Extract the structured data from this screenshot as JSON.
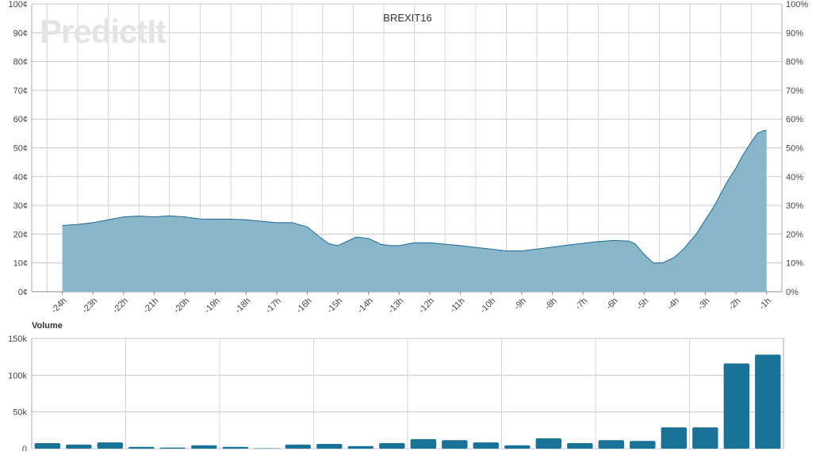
{
  "logo": {
    "text": "PredictIt"
  },
  "chart_data": [
    {
      "type": "area",
      "title": "BREXIT16",
      "xlabel": "",
      "ylabel": "",
      "categories": [
        "-24h",
        "-23h",
        "-22h",
        "-21h",
        "-20h",
        "-19h",
        "-18h",
        "-17h",
        "-16h",
        "-15h",
        "-14h",
        "-13h",
        "-12h",
        "-11h",
        "-10h",
        "-9h",
        "-8h",
        "-7h",
        "-6h",
        "-5h",
        "-4h",
        "-3h",
        "-2h",
        "-1h"
      ],
      "x": [
        -24,
        -23.5,
        -23,
        -22.5,
        -22,
        -21.5,
        -21,
        -20.5,
        -20,
        -19.5,
        -19,
        -18.5,
        -18,
        -17.5,
        -17,
        -16.5,
        -16,
        -15.6,
        -15.3,
        -15,
        -14.7,
        -14.4,
        -14,
        -13.6,
        -13.3,
        -13,
        -12.5,
        -12,
        -11.5,
        -11,
        -10.5,
        -10,
        -9.5,
        -9,
        -8.5,
        -8,
        -7.5,
        -7,
        -6.5,
        -6,
        -5.5,
        -5.3,
        -5,
        -4.7,
        -4.4,
        -4,
        -3.7,
        -3.3,
        -3,
        -2.7,
        -2.5,
        -2.3,
        -2,
        -1.8,
        -1.5,
        -1.3,
        -1.1,
        -1
      ],
      "values": [
        23,
        23.4,
        24,
        25,
        26,
        26.3,
        26,
        26.4,
        26,
        25.3,
        25.2,
        25.2,
        25,
        24.5,
        24,
        24,
        22.5,
        19,
        16.7,
        16,
        17.5,
        19,
        18.5,
        16.5,
        16,
        16,
        17,
        17,
        16.5,
        16,
        15.4,
        14.8,
        14.2,
        14.2,
        14.8,
        15.5,
        16.2,
        16.8,
        17.4,
        17.8,
        17.6,
        16.7,
        13,
        10,
        10,
        12,
        15,
        20,
        25,
        30,
        34,
        38,
        43,
        47,
        52,
        55,
        56,
        56
      ],
      "y_tick_values": [
        0,
        10,
        20,
        30,
        40,
        50,
        60,
        70,
        80,
        90,
        100
      ],
      "y_tick_labels_left": [
        "0¢",
        "10¢",
        "20¢",
        "30¢",
        "40¢",
        "50¢",
        "60¢",
        "70¢",
        "80¢",
        "90¢",
        "100¢"
      ],
      "y_tick_labels_right": [
        "0%",
        "10%",
        "20%",
        "30%",
        "40%",
        "50%",
        "60%",
        "70%",
        "80%",
        "90%",
        "100%"
      ],
      "ylim": [
        0,
        100
      ],
      "xlim": [
        -25,
        -0.5
      ],
      "grid": true,
      "fill_color": "#8ab6ca",
      "line_color": "#1b6b93"
    },
    {
      "type": "bar",
      "title": "Volume",
      "categories": [
        "-24h",
        "-23h",
        "-22h",
        "-21h",
        "-20h",
        "-19h",
        "-18h",
        "-17h",
        "-16h",
        "-15h",
        "-14h",
        "-13h",
        "-12h",
        "-11h",
        "-10h",
        "-9h",
        "-8h",
        "-7h",
        "-6h",
        "-5h",
        "-4h",
        "-3h",
        "-2h",
        "-1h"
      ],
      "values": [
        7500,
        5500,
        8500,
        2500,
        1500,
        4500,
        2500,
        500,
        5500,
        6500,
        3500,
        7500,
        13000,
        11500,
        8500,
        4500,
        14000,
        7500,
        11500,
        10500,
        29000,
        29000,
        116000,
        128000
      ],
      "y_tick_values": [
        0,
        50000,
        100000,
        150000
      ],
      "y_tick_labels": [
        "0",
        "50k",
        "100k",
        "150k"
      ],
      "ylim": [
        0,
        150000
      ],
      "grid": true,
      "bar_color": "#1a7297"
    }
  ]
}
